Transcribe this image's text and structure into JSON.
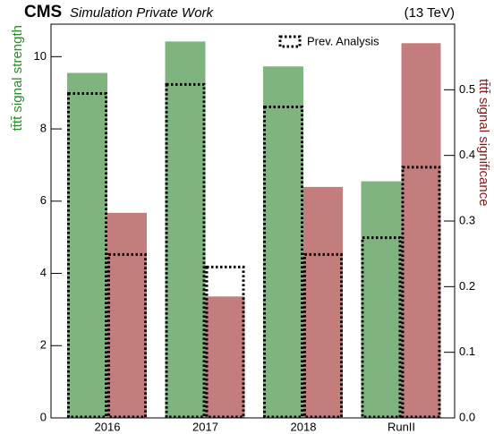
{
  "chart_data": {
    "type": "bar",
    "title": "CMS",
    "subtitle": "Simulation Private Work",
    "energy_label": "(13 TeV)",
    "categories": [
      "2016",
      "2017",
      "2018",
      "RunII"
    ],
    "series": [
      {
        "name": "tt̄tt̄ signal strength",
        "color": "#7fb47f",
        "label_color": "#2e8b2e",
        "axis": "y",
        "values": [
          9.55,
          10.42,
          9.73,
          6.55
        ],
        "prev_values": [
          8.98,
          9.23,
          8.61,
          4.99
        ]
      },
      {
        "name": "tt̄tt̄ signal significance",
        "color": "#c47d7d",
        "label_color": "#8b1a1a",
        "axis": "y2",
        "values": [
          0.3125,
          0.185,
          0.352,
          0.571
        ],
        "prev_values": [
          0.249,
          0.23,
          0.249,
          0.382
        ]
      }
    ],
    "prev_label": "Prev. Analysis",
    "ylim": [
      0,
      10.9
    ],
    "yticks": [
      0,
      2,
      4,
      6,
      8,
      10
    ],
    "y2lim": [
      0,
      0.6
    ],
    "y2ticks": [
      {
        "value": 0,
        "label": "0.0"
      },
      0.1,
      0.2,
      0.3,
      0.4,
      0.5
    ]
  }
}
